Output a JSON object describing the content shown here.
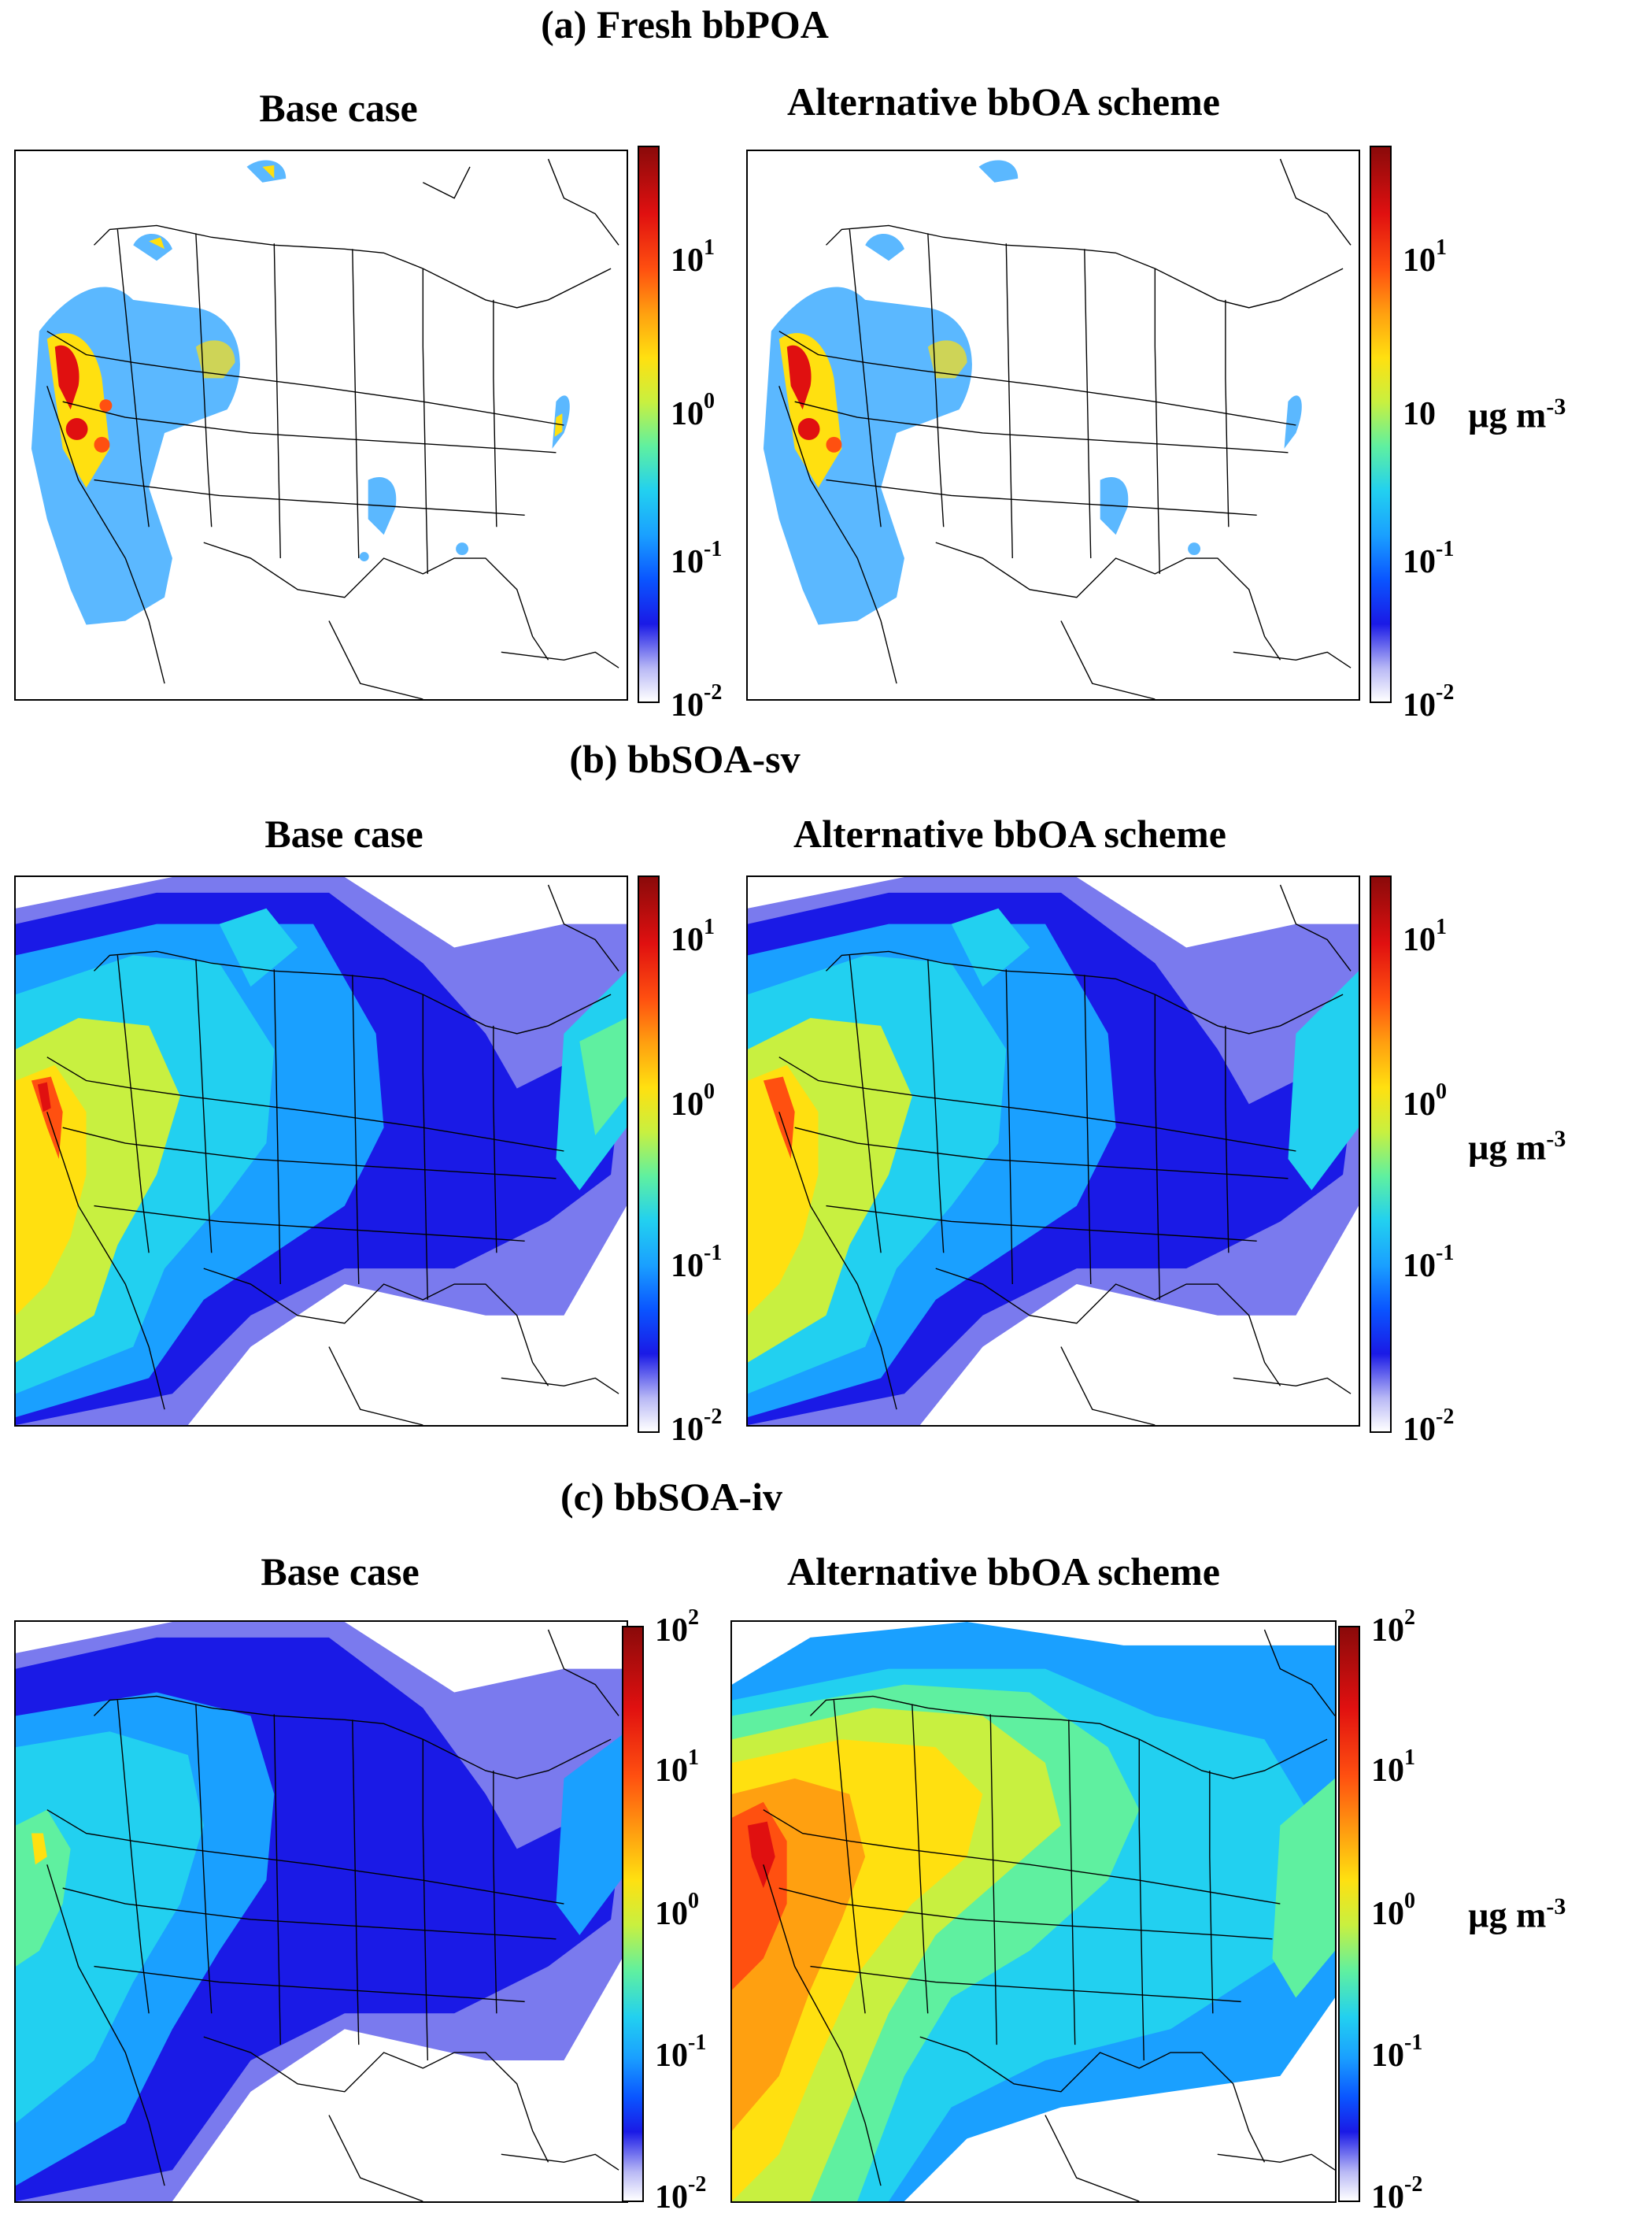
{
  "rows": [
    {
      "title": "(a) Fresh bbPOA",
      "left_title": "Base case",
      "right_title": "Alternative bbOA scheme",
      "colorbar_ticks_left": [
        {
          "base": "10",
          "exp": "1"
        },
        {
          "base": "10",
          "exp": "0"
        },
        {
          "base": "10",
          "exp": "-1"
        },
        {
          "base": "10",
          "exp": "-2"
        }
      ],
      "colorbar_ticks_right": [
        {
          "base": "10",
          "exp": "1"
        },
        {
          "base": "10",
          "exp": ""
        },
        {
          "base": "10",
          "exp": "-1"
        },
        {
          "base": "10",
          "exp": "-2"
        }
      ],
      "unit": {
        "base": "µg m",
        "exp": "-3"
      }
    },
    {
      "title": "(b) bbSOA-sv",
      "left_title": "Base case",
      "right_title": "Alternative bbOA scheme",
      "colorbar_ticks_left": [
        {
          "base": "10",
          "exp": "1"
        },
        {
          "base": "10",
          "exp": "0"
        },
        {
          "base": "10",
          "exp": "-1"
        },
        {
          "base": "10",
          "exp": "-2"
        }
      ],
      "colorbar_ticks_right": [
        {
          "base": "10",
          "exp": "1"
        },
        {
          "base": "10",
          "exp": "0"
        },
        {
          "base": "10",
          "exp": "-1"
        },
        {
          "base": "10",
          "exp": "-2"
        }
      ],
      "unit": {
        "base": "µg m",
        "exp": "-3"
      }
    },
    {
      "title": "(c) bbSOA-iv",
      "left_title": "Base case",
      "right_title": "Alternative bbOA scheme",
      "colorbar_ticks_left": [
        {
          "base": "10",
          "exp": "2"
        },
        {
          "base": "10",
          "exp": "1"
        },
        {
          "base": "10",
          "exp": "0"
        },
        {
          "base": "10",
          "exp": "-1"
        },
        {
          "base": "10",
          "exp": "-2"
        }
      ],
      "colorbar_ticks_right": [
        {
          "base": "10",
          "exp": "2"
        },
        {
          "base": "10",
          "exp": "1"
        },
        {
          "base": "10",
          "exp": "0"
        },
        {
          "base": "10",
          "exp": "-1"
        },
        {
          "base": "10",
          "exp": "-2"
        }
      ],
      "unit": {
        "base": "µg m",
        "exp": "-3"
      }
    }
  ],
  "colormap": [
    "#ffffff",
    "#b8b8f5",
    "#7a7aee",
    "#1a1ae6",
    "#0a55ff",
    "#1aa0ff",
    "#22d0f0",
    "#5ff0a0",
    "#c8f040",
    "#ffe010",
    "#ffa010",
    "#ff5010",
    "#e01010",
    "#8a0a0a"
  ]
}
